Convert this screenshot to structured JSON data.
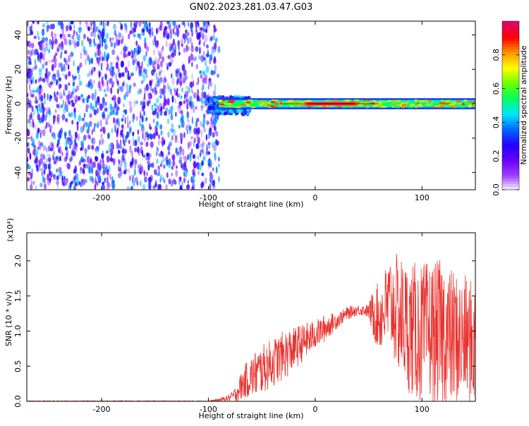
{
  "figure": {
    "title": "GN02.2023.281.03.47.G03"
  },
  "colors": {
    "axis": "#000000",
    "snr_line": "#e8322e",
    "background": "#ffffff",
    "colormap": [
      "#ffffff",
      "#9f40ff",
      "#6a00ff",
      "#2400ff",
      "#0066ff",
      "#00e5ff",
      "#00ff66",
      "#66ff00",
      "#ffff00",
      "#ff9900",
      "#ff0000",
      "#e0006a"
    ]
  },
  "chart_data": [
    {
      "id": "spectrogram",
      "type": "heatmap",
      "title": "",
      "xlabel": "Height of straight line (km)",
      "ylabel": "Frequency (Hz)",
      "xlim": [
        -270,
        150
      ],
      "ylim": [
        -50,
        48
      ],
      "x_ticks": [
        -200,
        -100,
        0,
        100
      ],
      "x_tick_labels": [
        "-200",
        "-100",
        "0",
        "100"
      ],
      "y_ticks": [
        -40,
        -20,
        0,
        20,
        40
      ],
      "y_tick_labels": [
        "-40",
        "-20",
        "0",
        "20",
        "40"
      ],
      "colorbar": {
        "label": "Normalized spectral amplitude",
        "range": [
          0,
          1
        ],
        "ticks": [
          0.0,
          0.2,
          0.4,
          0.6,
          0.8
        ],
        "tick_labels": [
          "0.0",
          "0.2",
          "0.4",
          "0.6",
          "0.8"
        ],
        "colormap": "rainbow"
      },
      "regions": [
        {
          "name": "noise",
          "x_range": [
            -270,
            -90
          ],
          "y_range": [
            -50,
            48
          ],
          "amplitude": 0.25
        },
        {
          "name": "transition",
          "x_range": [
            -100,
            -60
          ],
          "y_range": [
            -6,
            4
          ],
          "amplitude": 0.35
        },
        {
          "name": "signal-band",
          "x_range": [
            -90,
            150
          ],
          "y_center": 0,
          "half_width": 3,
          "amplitude": 0.7
        },
        {
          "name": "signal-core",
          "x_range": [
            -10,
            40
          ],
          "y_center": 0,
          "half_width": 1,
          "amplitude": 1.0
        }
      ]
    },
    {
      "id": "snr",
      "type": "line",
      "title": "",
      "xlabel": "Height of straight line (km)",
      "ylabel": "SNR (10 * v/v)",
      "y_scale_label": "(x10⁴)",
      "xlim": [
        -270,
        150
      ],
      "ylim": [
        0,
        2.4
      ],
      "x_ticks": [
        -200,
        -100,
        0,
        100
      ],
      "x_tick_labels": [
        "-200",
        "-100",
        "0",
        "100"
      ],
      "y_ticks": [
        0.0,
        0.5,
        1.0,
        1.5,
        2.0
      ],
      "y_tick_labels": [
        "0.0",
        "0.5",
        "1.0",
        "1.5",
        "2.0"
      ],
      "series": [
        {
          "x": [
            -270,
            -240,
            -210,
            -180,
            -150,
            -120,
            -100,
            -90,
            -80,
            -75,
            -70,
            -65,
            -60,
            -55,
            -50,
            -45,
            -40,
            -35,
            -30,
            -25,
            -20,
            -15,
            -10,
            -5,
            0,
            5,
            10,
            15,
            20,
            25,
            30,
            35,
            40,
            45,
            50,
            55,
            60,
            65,
            70,
            75,
            80,
            85,
            90,
            95,
            100,
            105,
            110,
            115,
            120,
            125,
            130,
            135,
            140,
            145,
            150
          ],
          "y": [
            0.0,
            0.0,
            0.0,
            0.0,
            0.0,
            0.0,
            0.0,
            0.02,
            0.05,
            0.1,
            0.2,
            0.3,
            0.35,
            0.4,
            0.45,
            0.5,
            0.55,
            0.6,
            0.65,
            0.7,
            0.75,
            0.8,
            0.85,
            0.9,
            0.95,
            1.0,
            1.05,
            1.1,
            1.15,
            1.2,
            1.25,
            1.28,
            1.3,
            1.3,
            1.28,
            1.25,
            1.2,
            1.3,
            1.4,
            1.3,
            1.2,
            1.1,
            1.0,
            1.0,
            0.95,
            1.0,
            1.0,
            0.95,
            1.0,
            0.9,
            0.9,
            0.85,
            0.9,
            0.85,
            0.8
          ],
          "spread": [
            0.01,
            0.01,
            0.01,
            0.01,
            0.01,
            0.01,
            0.01,
            0.02,
            0.05,
            0.1,
            0.2,
            0.25,
            0.3,
            0.35,
            0.35,
            0.35,
            0.35,
            0.35,
            0.35,
            0.35,
            0.3,
            0.3,
            0.25,
            0.25,
            0.2,
            0.2,
            0.2,
            0.15,
            0.12,
            0.1,
            0.1,
            0.08,
            0.08,
            0.08,
            0.1,
            0.4,
            0.5,
            0.6,
            0.7,
            0.8,
            0.9,
            0.9,
            0.95,
            1.0,
            1.0,
            1.0,
            1.0,
            1.05,
            1.1,
            1.0,
            1.0,
            0.95,
            0.9,
            0.9,
            0.9
          ]
        }
      ]
    }
  ]
}
